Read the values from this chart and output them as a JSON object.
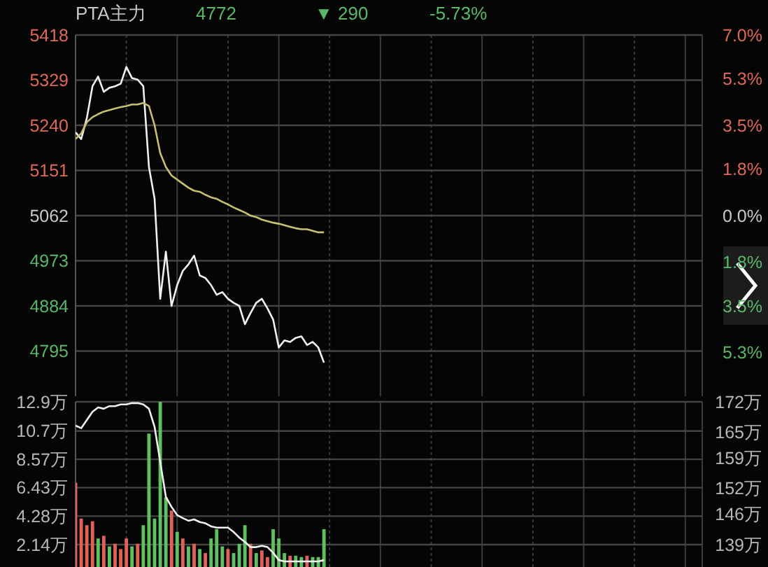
{
  "chart_data": [
    {
      "type": "line",
      "title": "PTA主力",
      "annotations": [
        "4772",
        "▼ 290",
        "-5.73%"
      ],
      "categories": [
        null,
        null,
        null,
        null,
        null,
        null,
        null,
        null,
        null,
        null,
        null,
        null,
        null,
        null,
        null,
        null,
        null,
        null,
        null,
        null,
        null,
        null,
        null,
        null,
        null,
        null,
        null,
        null,
        null,
        null,
        null,
        null,
        null,
        null,
        null,
        null,
        null,
        null,
        null,
        null,
        null,
        null,
        null,
        null,
        null,
        null,
        null,
        null,
        null,
        null,
        null,
        null,
        null,
        null,
        null,
        null,
        null,
        null,
        null,
        null,
        null,
        null,
        null,
        null,
        null,
        null,
        null,
        null,
        null,
        null,
        null,
        null,
        null,
        null,
        null,
        null,
        null,
        null,
        null,
        null,
        null,
        null,
        null,
        null,
        null,
        null,
        null,
        null,
        null,
        null,
        null,
        null,
        null,
        null,
        null,
        null,
        null,
        null,
        null,
        null,
        null,
        null,
        null,
        null,
        null,
        null,
        null,
        null,
        null,
        null,
        null,
        null
      ],
      "series": [
        {
          "color": "#f0f0f0",
          "values": [
            5226,
            5213,
            5254,
            5317,
            5336,
            5306,
            5314,
            5317,
            5322,
            5355,
            5333,
            5330,
            5317,
            5158,
            5095,
            4898,
            4991,
            4884,
            4925,
            4953,
            4966,
            4983,
            4944,
            4939,
            4925,
            4906,
            4911,
            4898,
            4890,
            4884,
            4848,
            4870,
            4890,
            4898,
            4879,
            4857,
            4802,
            4816,
            4813,
            4821,
            4824,
            4807,
            4813,
            4802,
            4772,
            null,
            null,
            null,
            null,
            null,
            null,
            null,
            null,
            null,
            null,
            null,
            null,
            null,
            null,
            null,
            null,
            null,
            null,
            null,
            null,
            null,
            null,
            null,
            null,
            null,
            null,
            null,
            null,
            null,
            null,
            null,
            null,
            null,
            null,
            null,
            null,
            null,
            null,
            null,
            null,
            null,
            null,
            null,
            null,
            null,
            null,
            null,
            null,
            null,
            null,
            null,
            null,
            null,
            null,
            null,
            null,
            null,
            null,
            null,
            null,
            null,
            null,
            null,
            null,
            null,
            null,
            null
          ]
        },
        {
          "color": "#c8c070",
          "values": [
            5213,
            5224,
            5246,
            5256,
            5262,
            5267,
            5270,
            5273,
            5276,
            5278,
            5281,
            5281,
            5284,
            5278,
            5240,
            5185,
            5158,
            5141,
            5133,
            5125,
            5117,
            5111,
            5109,
            5103,
            5098,
            5095,
            5089,
            5084,
            5078,
            5073,
            5068,
            5062,
            5059,
            5054,
            5051,
            5048,
            5046,
            5043,
            5040,
            5037,
            5035,
            5035,
            5032,
            5029,
            5029,
            null,
            null,
            null,
            null,
            null,
            null,
            null,
            null,
            null,
            null,
            null,
            null,
            null,
            null,
            null,
            null,
            null,
            null,
            null,
            null,
            null,
            null,
            null,
            null,
            null,
            null,
            null,
            null,
            null,
            null,
            null,
            null,
            null,
            null,
            null,
            null,
            null,
            null,
            null,
            null,
            null,
            null,
            null,
            null,
            null,
            null,
            null,
            null,
            null,
            null,
            null,
            null,
            null,
            null,
            null,
            null,
            null,
            null,
            null,
            null,
            null,
            null,
            null,
            null,
            null,
            null,
            null
          ]
        }
      ],
      "ylim": [
        4706,
        5418
      ],
      "yticks": [
        5418,
        5329,
        5240,
        5151,
        5062,
        4973,
        4884,
        4795
      ],
      "y2lim": [
        -7.0,
        7.0
      ],
      "y2ticks": [
        {
          "value": 7.0,
          "label": "7.0%"
        },
        {
          "value": 5.3,
          "label": "5.3%"
        },
        {
          "value": 3.5,
          "label": "3.5%"
        },
        {
          "value": 1.8,
          "label": "1.8%"
        },
        {
          "value": 0,
          "label": "0.0%"
        },
        {
          "value": -1.8,
          "label": "1.8%"
        },
        {
          "value": -3.5,
          "label": "3.5%"
        },
        {
          "value": -5.3,
          "label": "5.3%"
        }
      ],
      "grid": true
    },
    {
      "type": "bar",
      "categories": [
        null,
        null,
        null,
        null,
        null,
        null,
        null,
        null,
        null,
        null,
        null,
        null,
        null,
        null,
        null,
        null,
        null,
        null,
        null,
        null,
        null,
        null,
        null,
        null,
        null,
        null,
        null,
        null,
        null,
        null,
        null,
        null,
        null,
        null,
        null,
        null,
        null,
        null,
        null,
        null,
        null,
        null,
        null,
        null,
        null,
        null,
        null,
        null,
        null,
        null,
        null,
        null,
        null,
        null,
        null,
        null,
        null,
        null,
        null,
        null,
        null,
        null,
        null,
        null,
        null,
        null,
        null,
        null,
        null,
        null,
        null,
        null,
        null,
        null,
        null,
        null,
        null,
        null,
        null,
        null,
        null,
        null,
        null,
        null,
        null,
        null,
        null,
        null,
        null,
        null,
        null,
        null,
        null,
        null,
        null,
        null,
        null,
        null,
        null,
        null,
        null,
        null,
        null,
        null,
        null,
        null,
        null,
        null,
        null,
        null,
        null,
        null
      ],
      "series": [
        {
          "colors": [
            "#e0605a",
            "#e0605a",
            "#e0605a",
            "#e0605a",
            "#60c060",
            "#e0605a",
            "#60c060",
            "#e0605a",
            "#e0605a",
            "#e0605a",
            "#60c060",
            "#e0605a",
            "#60c060",
            "#60c060",
            "#60c060",
            "#60c060",
            "#60c060",
            "#e0605a",
            "#60c060",
            "#e0605a",
            "#60c060",
            "#e0605a",
            "#60c060",
            "#e0605a",
            "#60c060",
            "#60c060",
            "#60c060",
            "#e0605a",
            "#60c060",
            "#60c060",
            "#60c060",
            "#e0605a",
            "#60c060",
            "#e0605a",
            "#e0605a",
            "#60c060",
            "#60c060",
            "#60c060",
            "#e0605a",
            "#60c060",
            "#60c060",
            "#e0605a",
            "#60c060",
            "#60c060",
            "#60c060",
            null,
            null,
            null,
            null,
            null,
            null,
            null,
            null,
            null,
            null,
            null,
            null,
            null,
            null,
            null,
            null,
            null,
            null,
            null,
            null,
            null,
            null,
            null,
            null,
            null,
            null,
            null,
            null,
            null,
            null,
            null,
            null,
            null,
            null,
            null,
            null,
            null,
            null,
            null,
            null,
            null,
            null,
            null,
            null,
            null,
            null,
            null,
            null,
            null,
            null,
            null,
            null,
            null,
            null,
            null,
            null,
            null,
            null,
            null,
            null,
            null,
            null,
            null,
            null,
            null,
            null,
            null
          ],
          "values": [
            6.8,
            4.1,
            3.6,
            3.9,
            2.6,
            2.8,
            2.0,
            2.2,
            1.8,
            2.6,
            2.0,
            2.2,
            3.6,
            10.5,
            4.1,
            12.9,
            5.7,
            4.7,
            3.1,
            2.6,
            2.0,
            2.2,
            1.8,
            1.5,
            2.6,
            3.3,
            2.0,
            1.8,
            1.5,
            2.2,
            3.6,
            2.2,
            1.5,
            1.7,
            1.2,
            3.3,
            2.6,
            1.5,
            1.3,
            1.3,
            1.2,
            1.3,
            1.2,
            1.2,
            3.3,
            null,
            null,
            null,
            null,
            null,
            null,
            null,
            null,
            null,
            null,
            null,
            null,
            null,
            null,
            null,
            null,
            null,
            null,
            null,
            null,
            null,
            null,
            null,
            null,
            null,
            null,
            null,
            null,
            null,
            null,
            null,
            null,
            null,
            null,
            null,
            null,
            null,
            null,
            null,
            null,
            null,
            null,
            null,
            null,
            null,
            null,
            null,
            null,
            null,
            null,
            null,
            null,
            null,
            null,
            null,
            null,
            null,
            null,
            null,
            null,
            null,
            null,
            null,
            null,
            null,
            null,
            null
          ]
        },
        {
          "type": "line",
          "axis": "y2",
          "color": "#f0f0f0",
          "values": [
            166.5,
            165.9,
            167.8,
            169.7,
            170.7,
            170.4,
            171.0,
            171.0,
            171.4,
            171.4,
            171.7,
            171.7,
            171.4,
            170.4,
            166.2,
            158.1,
            150.0,
            147.7,
            145.8,
            145.1,
            144.5,
            144.8,
            144.2,
            143.9,
            143.2,
            142.9,
            142.9,
            142.9,
            141.9,
            140.6,
            139.6,
            138.4,
            138.4,
            138.7,
            138.4,
            137.1,
            135.4,
            135.1,
            135.1,
            135.1,
            135.1,
            135.1,
            135.1,
            135.1,
            135.4,
            null,
            null,
            null,
            null,
            null,
            null,
            null,
            null,
            null,
            null,
            null,
            null,
            null,
            null,
            null,
            null,
            null,
            null,
            null,
            null,
            null,
            null,
            null,
            null,
            null,
            null,
            null,
            null,
            null,
            null,
            null,
            null,
            null,
            null,
            null,
            null,
            null,
            null,
            null,
            null,
            null,
            null,
            null,
            null,
            null,
            null,
            null,
            null,
            null,
            null,
            null,
            null,
            null,
            null,
            null,
            null,
            null,
            null,
            null,
            null,
            null,
            null,
            null,
            null,
            null,
            null,
            null
          ]
        }
      ],
      "ylim": [
        0.45,
        12.9
      ],
      "yticks": [
        {
          "value": 12.9,
          "label": "12.9万"
        },
        {
          "value": 10.7,
          "label": "10.7万"
        },
        {
          "value": 8.57,
          "label": "8.57万"
        },
        {
          "value": 6.43,
          "label": "6.43万"
        },
        {
          "value": 4.28,
          "label": "4.28万"
        },
        {
          "value": 2.14,
          "label": "2.14万"
        }
      ],
      "y2lim": [
        133.8,
        172
      ],
      "y2ticks": [
        {
          "value": 172,
          "label": "172万"
        },
        {
          "value": 165,
          "label": "165万"
        },
        {
          "value": 159,
          "label": "159万"
        },
        {
          "value": 152,
          "label": "152万"
        },
        {
          "value": 146,
          "label": "146万"
        },
        {
          "value": 139,
          "label": "139万"
        }
      ],
      "grid": true
    }
  ]
}
